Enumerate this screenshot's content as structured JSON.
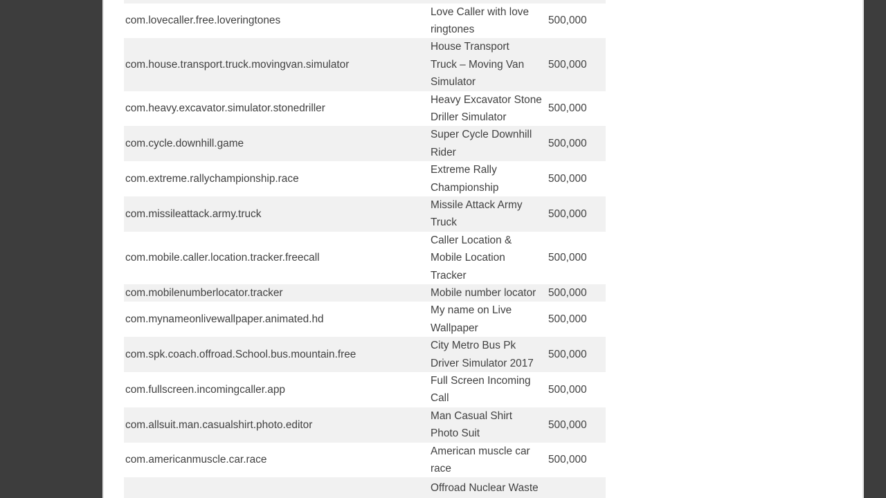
{
  "viewer": {
    "chrome_color": "#3d3d3d",
    "page_color": "#ffffff",
    "row_alt_color": "#f1f1f1",
    "text_color": "#414141"
  },
  "table": {
    "columns": [
      "package_name",
      "app_title",
      "downloads"
    ],
    "rows": [
      {
        "package": "com.lovecaller.free.loveringtones",
        "title": "Love Caller with love\nringtones",
        "downloads": "500,000"
      },
      {
        "package": "com.house.transport.truck.movingvan.simulator",
        "title": "House Transport\nTruck – Moving Van\nSimulator",
        "downloads": "500,000"
      },
      {
        "package": "com.heavy.excavator.simulator.stonedriller",
        "title": "Heavy Excavator Stone\nDriller Simulator",
        "downloads": "500,000"
      },
      {
        "package": "com.cycle.downhill.game",
        "title": "Super Cycle Downhill\nRider",
        "downloads": "500,000"
      },
      {
        "package": "com.extreme.rallychampionship.race",
        "title": "Extreme Rally\nChampionship",
        "downloads": "500,000"
      },
      {
        "package": "com.missileattack.army.truck",
        "title": "Missile Attack Army\nTruck",
        "downloads": "500,000"
      },
      {
        "package": "com.mobile.caller.location.tracker.freecall",
        "title": "Caller Location &\nMobile Location\nTracker",
        "downloads": "500,000"
      },
      {
        "package": "com.mobilenumberlocator.tracker",
        "title": "Mobile number locator",
        "downloads": "500,000"
      },
      {
        "package": "com.mynameonlivewallpaper.animated.hd",
        "title": "My name on Live\nWallpaper",
        "downloads": "500,000"
      },
      {
        "package": "com.spk.coach.offroad.School.bus.mountain.free",
        "title": "City Metro Bus Pk\nDriver Simulator 2017",
        "downloads": "500,000"
      },
      {
        "package": "com.fullscreen.incomingcaller.app",
        "title": "Full Screen Incoming\nCall",
        "downloads": "500,000"
      },
      {
        "package": "com.allsuit.man.casualshirt.photo.editor",
        "title": "Man Casual Shirt\nPhoto Suit",
        "downloads": "500,000"
      },
      {
        "package": "com.americanmuscle.car.race",
        "title": "American muscle car\nrace",
        "downloads": "500,000"
      },
      {
        "package": "",
        "title": "Offroad Nuclear Waste",
        "downloads": ""
      }
    ]
  }
}
